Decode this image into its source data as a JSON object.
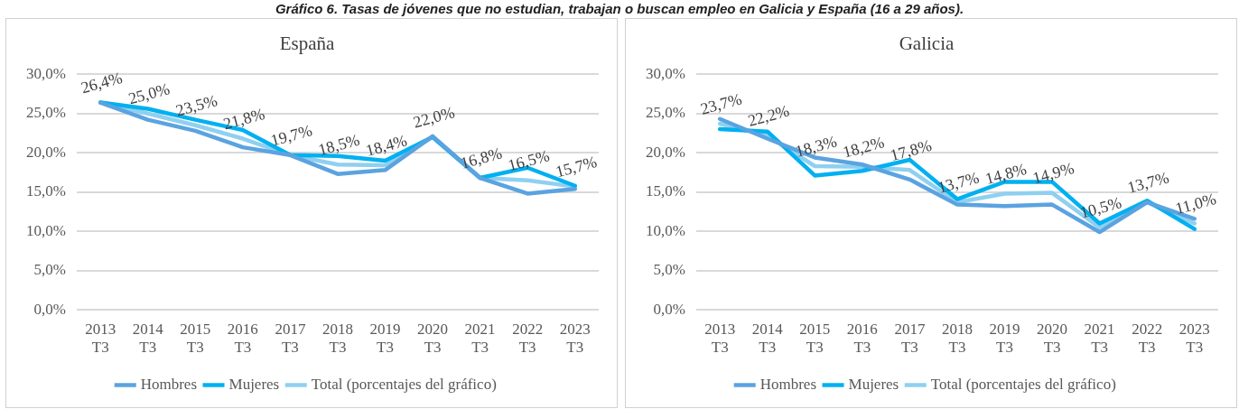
{
  "chart_data": [
    {
      "type": "line",
      "title": "España",
      "annotations": [
        "Gráfico 6. Tasas de jóvenes que no estudian, trabajan o buscan empleo en Galicia y España (16 a 29 años)."
      ],
      "categories": [
        "2013 T3",
        "2014 T3",
        "2015 T3",
        "2016 T3",
        "2017 T3",
        "2018 T3",
        "2019 T3",
        "2020 T3",
        "2021 T3",
        "2022 T3",
        "2023 T3"
      ],
      "series": [
        {
          "name": "Hombres",
          "color": "#5ba3e0",
          "values": [
            26.4,
            24.2,
            22.8,
            20.7,
            19.7,
            17.3,
            17.8,
            22.1,
            16.8,
            14.8,
            15.4
          ]
        },
        {
          "name": "Mujeres",
          "color": "#00b0f0",
          "values": [
            26.4,
            25.6,
            24.2,
            22.9,
            19.7,
            19.6,
            19.0,
            22.0,
            16.8,
            18.1,
            15.8
          ]
        },
        {
          "name": "Total (porcentajes del gráfico)",
          "color": "#8fd0f0",
          "values": [
            26.4,
            25.0,
            23.5,
            21.8,
            19.7,
            18.5,
            18.4,
            22.0,
            16.8,
            16.5,
            15.7
          ],
          "value_labels": [
            "26,4%",
            "25,0%",
            "23,5%",
            "21,8%",
            "19,7%",
            "18,5%",
            "18,4%",
            "22,0%",
            "16,8%",
            "16,5%",
            "15,7%"
          ]
        }
      ],
      "ylim": [
        0,
        30
      ],
      "yticks": [
        {
          "value": 0,
          "label": "0,0%"
        },
        {
          "value": 5,
          "label": "5,0%"
        },
        {
          "value": 10,
          "label": "10,0%"
        },
        {
          "value": 15,
          "label": "15,0%"
        },
        {
          "value": 20,
          "label": "20,0%"
        },
        {
          "value": 25,
          "label": "25,0%"
        },
        {
          "value": 30,
          "label": "30,0%"
        }
      ],
      "grid": "y",
      "legend": "bottom",
      "marker": "none",
      "line_style": "solid"
    },
    {
      "type": "line",
      "title": "Galicia",
      "categories": [
        "2013 T3",
        "2014 T3",
        "2015 T3",
        "2016 T3",
        "2017 T3",
        "2018 T3",
        "2019 T3",
        "2020 T3",
        "2021 T3",
        "2022 T3",
        "2023 T3"
      ],
      "series": [
        {
          "name": "Hombres",
          "color": "#5ba3e0",
          "values": [
            24.3,
            21.8,
            19.4,
            18.5,
            16.6,
            13.4,
            13.2,
            13.4,
            9.9,
            13.7,
            11.6
          ]
        },
        {
          "name": "Mujeres",
          "color": "#00b0f0",
          "values": [
            23.0,
            22.7,
            17.1,
            17.7,
            19.1,
            14.1,
            16.3,
            16.3,
            11.0,
            13.9,
            10.3
          ]
        },
        {
          "name": "Total (porcentajes del gráfico)",
          "color": "#8fd0f0",
          "values": [
            23.7,
            22.2,
            18.3,
            18.2,
            17.8,
            13.7,
            14.8,
            14.9,
            10.5,
            13.7,
            11.0
          ],
          "value_labels": [
            "23,7%",
            "22,2%",
            "18,3%",
            "18,2%",
            "17,8%",
            "13,7%",
            "14,8%",
            "14,9%",
            "10,5%",
            "13,7%",
            "11,0%"
          ]
        }
      ],
      "ylim": [
        0,
        30
      ],
      "yticks": [
        {
          "value": 0,
          "label": "0,0%"
        },
        {
          "value": 5,
          "label": "5,0%"
        },
        {
          "value": 10,
          "label": "10,0%"
        },
        {
          "value": 15,
          "label": "15,0%"
        },
        {
          "value": 20,
          "label": "20,0%"
        },
        {
          "value": 25,
          "label": "25,0%"
        },
        {
          "value": 30,
          "label": "30,0%"
        }
      ],
      "grid": "y",
      "legend": "bottom",
      "marker": "none",
      "line_style": "solid"
    }
  ]
}
